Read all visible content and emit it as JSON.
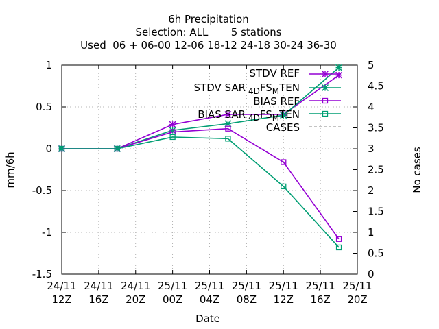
{
  "chart_data": {
    "type": "line",
    "title": {
      "line1": "6h Precipitation",
      "line2": "Selection: ALL       5 stations",
      "line3": "Used  06 + 06-00 12-06 18-12 24-18 30-24 36-30"
    },
    "xlabel": "Date",
    "ylabel": "mm/6h",
    "y2label": "No cases",
    "ylim": [
      -1.5,
      1
    ],
    "y2lim": [
      0,
      5
    ],
    "grid": true,
    "legend_position": "top-right",
    "x_ticks": [
      {
        "hours": 0,
        "line1": "24/11",
        "line2": "12Z"
      },
      {
        "hours": 4,
        "line1": "24/11",
        "line2": "16Z"
      },
      {
        "hours": 8,
        "line1": "24/11",
        "line2": "20Z"
      },
      {
        "hours": 12,
        "line1": "25/11",
        "line2": "00Z"
      },
      {
        "hours": 16,
        "line1": "25/11",
        "line2": "04Z"
      },
      {
        "hours": 20,
        "line1": "25/11",
        "line2": "08Z"
      },
      {
        "hours": 24,
        "line1": "25/11",
        "line2": "12Z"
      },
      {
        "hours": 28,
        "line1": "25/11",
        "line2": "16Z"
      },
      {
        "hours": 32,
        "line1": "25/11",
        "line2": "20Z"
      }
    ],
    "y_ticks": [
      "1",
      "0.5",
      "0",
      "-0.5",
      "-1",
      "-1.5"
    ],
    "y_tick_values": [
      1,
      0.5,
      0,
      -0.5,
      -1,
      -1.5
    ],
    "y2_ticks": [
      "5",
      "4.5",
      "4",
      "3.5",
      "3",
      "2.5",
      "2",
      "1.5",
      "1",
      "0.5",
      "0"
    ],
    "y2_tick_values": [
      5,
      4.5,
      4,
      3.5,
      3,
      2.5,
      2,
      1.5,
      1,
      0.5,
      0
    ],
    "x_hours": [
      0,
      6,
      12,
      18,
      24,
      30
    ],
    "series": [
      {
        "name": "STDV REF",
        "color": "#9400d3",
        "marker": "star",
        "values": [
          0,
          0,
          0.29,
          0.41,
          0.41,
          0.88
        ]
      },
      {
        "name": "STDV SAR",
        "color": "#009e73",
        "marker": "star",
        "values": [
          0,
          0,
          0.22,
          0.3,
          0.4,
          0.97
        ]
      },
      {
        "name": "BIAS REF",
        "color": "#9400d3",
        "marker": "square",
        "values": [
          0,
          0,
          0.2,
          0.24,
          -0.16,
          -1.08
        ]
      },
      {
        "name": "BIAS SAR",
        "color": "#009e73",
        "marker": "square",
        "values": [
          0,
          0,
          0.14,
          0.12,
          -0.45,
          -1.18
        ]
      },
      {
        "name": "CASES",
        "color": "#888888",
        "marker": "none",
        "dashed": true,
        "values": []
      }
    ],
    "legend_labels": {
      "stdv_ref": "STDV REF",
      "stdv_sar_a": "STDV SAR",
      "stdv_sar_sub1": "4D",
      "stdv_sar_b": "FS",
      "stdv_sar_sub2": "M",
      "stdv_sar_c": "TEN",
      "bias_ref": "BIAS REF",
      "bias_sar_a": "BIAS SAR",
      "bias_sar_sub1": "4D",
      "bias_sar_b": "FS",
      "bias_sar_sub2": "M",
      "bias_sar_c": "TEN",
      "cases": "CASES"
    }
  }
}
